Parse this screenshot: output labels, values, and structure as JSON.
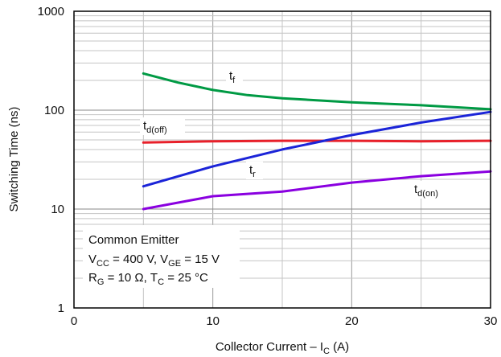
{
  "chart_data": {
    "type": "line",
    "title": "",
    "xlabel": {
      "main": "Collector Current – I",
      "sub": "C",
      "tail": " (A)"
    },
    "ylabel": "Switching Time (ns)",
    "xlim": [
      0,
      30
    ],
    "ylim": [
      1,
      1000
    ],
    "yscale": "log",
    "grid": true,
    "x_ticks": [
      "0",
      "10",
      "20",
      "30"
    ],
    "y_ticks": [
      "1",
      "10",
      "100",
      "1000"
    ],
    "series": [
      {
        "name": "t_f",
        "label_main": "t",
        "label_sub": "f",
        "color": "#009a44",
        "x": [
          5,
          7.5,
          10,
          12.5,
          15,
          20,
          25,
          30
        ],
        "y": [
          235,
          190,
          160,
          142,
          132,
          120,
          112,
          102
        ]
      },
      {
        "name": "t_d(off)",
        "label_main": "t",
        "label_sub": "d(off)",
        "color": "#e8202a",
        "x": [
          5,
          10,
          15,
          20,
          25,
          30
        ],
        "y": [
          47,
          48.5,
          49,
          49,
          48.5,
          49
        ]
      },
      {
        "name": "t_r",
        "label_main": "t",
        "label_sub": "r",
        "color": "#1b24d8",
        "x": [
          5,
          10,
          15,
          20,
          25,
          30
        ],
        "y": [
          17,
          27,
          40,
          56,
          75,
          96
        ]
      },
      {
        "name": "t_d(on)",
        "label_main": "t",
        "label_sub": "d(on)",
        "color": "#8a00e0",
        "x": [
          5,
          10,
          15,
          20,
          25,
          30
        ],
        "y": [
          10,
          13.5,
          15,
          18.5,
          21.5,
          24
        ]
      }
    ],
    "annotation": {
      "line1": "Common Emitter",
      "line2": [
        {
          "t": "V"
        },
        {
          "t": "CC",
          "sub": true
        },
        {
          "t": " = 400 V, V"
        },
        {
          "t": "GE",
          "sub": true
        },
        {
          "t": " = 15 V"
        }
      ],
      "line3": [
        {
          "t": "R"
        },
        {
          "t": "G",
          "sub": true
        },
        {
          "t": " = 10 Ω, T"
        },
        {
          "t": "C",
          "sub": true
        },
        {
          "t": " = 25 °C"
        }
      ]
    }
  }
}
